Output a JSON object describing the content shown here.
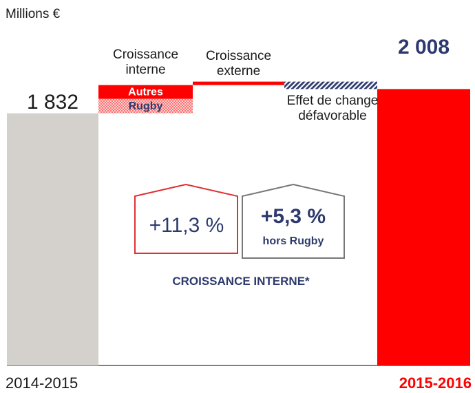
{
  "chart_data": {
    "type": "waterfall",
    "unit_label": "Millions €",
    "ylim": [
      0,
      2155
    ],
    "bars": [
      {
        "label": "2014-2015",
        "value": 1832,
        "value_label": "1 832",
        "color": "#d4d1cc"
      },
      {
        "label": "Croissance interne",
        "segments": [
          {
            "name": "Rugby",
            "value": 105,
            "color": "#ff0000",
            "pattern": "dots"
          },
          {
            "name": "Autres",
            "value": 100,
            "color": "#ff0000"
          }
        ]
      },
      {
        "label": "Croissance externe",
        "value": 25,
        "color": "#ff0000"
      },
      {
        "label": "Effet de change défavorable",
        "value": -54,
        "color": "#2e3a6e",
        "pattern": "hatch"
      },
      {
        "label": "2015-2016",
        "value": 2008,
        "value_label": "2 008",
        "color": "#ff0000"
      }
    ],
    "callouts": [
      {
        "text": "+11,3 %",
        "color": "#e03030"
      },
      {
        "text": "+5,3 %",
        "subtext": "hors Rugby",
        "color": "#777777"
      }
    ],
    "footnote": "CROISSANCE INTERNE*"
  }
}
